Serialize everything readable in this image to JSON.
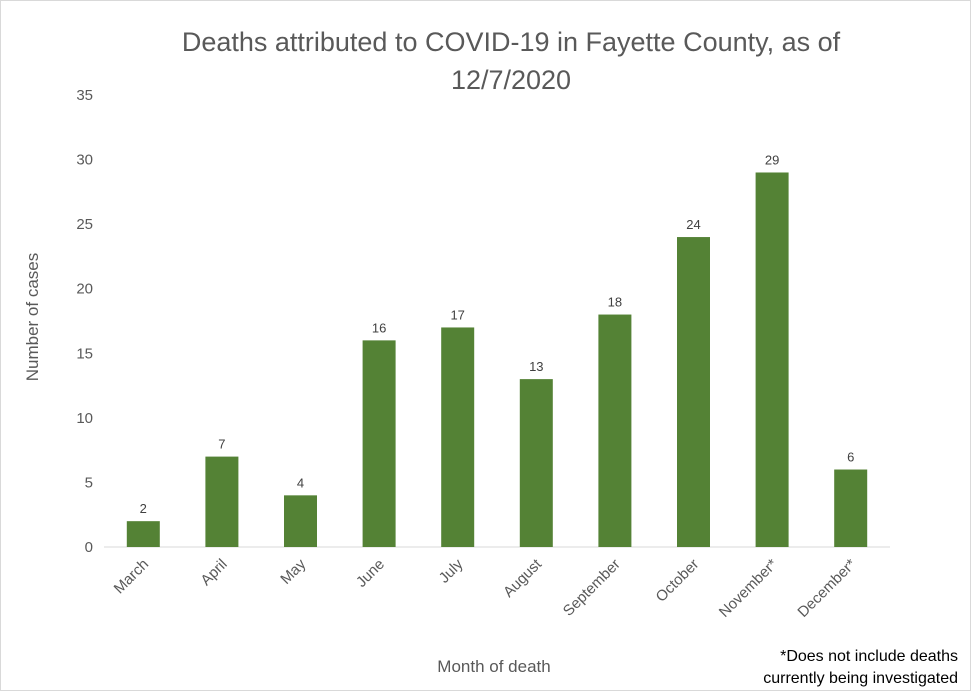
{
  "chart_data": {
    "type": "bar",
    "title": "Deaths attributed to COVID-19 in Fayette County, as of 12/7/2020",
    "xlabel": "Month of death",
    "ylabel": "Number of cases",
    "categories": [
      "March",
      "April",
      "May",
      "June",
      "July",
      "August",
      "September",
      "October",
      "November*",
      "December*"
    ],
    "values": [
      2,
      7,
      4,
      16,
      17,
      13,
      18,
      24,
      29,
      6
    ],
    "ylim": [
      0,
      35
    ],
    "yticks": [
      0,
      5,
      10,
      15,
      20,
      25,
      30,
      35
    ],
    "bar_color": "#548235",
    "grid": false,
    "data_labels": true,
    "footnote": "*Does not include deaths currently being investigated"
  }
}
